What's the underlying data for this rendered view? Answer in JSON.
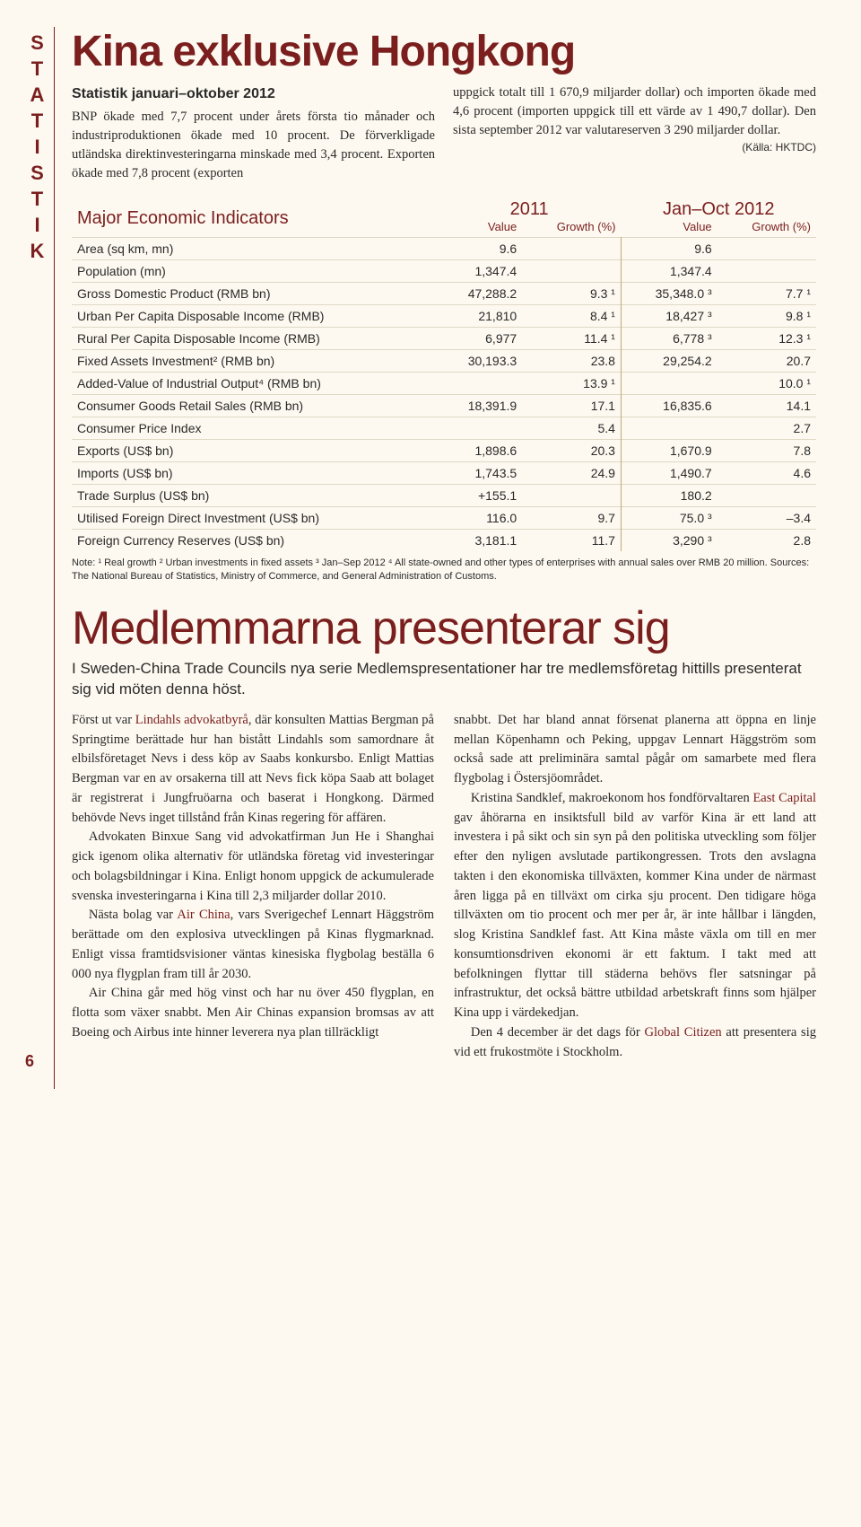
{
  "sideLabel": "STATISTIK",
  "title1": "Kina exklusive Hongkong",
  "subtitle": "Statistik januari–oktober 2012",
  "intro1": "BNP ökade med 7,7 procent under årets första tio månader och industriproduktionen ökade med 10 procent. De förverkligade utländska direktinvesteringarna minskade med 3,4 procent. Exporten ökade med 7,8 procent (exporten",
  "intro1lead": "BNP ökade med",
  "intro2": "uppgick totalt till 1 670,9 miljarder dollar) och importen ökade med 4,6 procent (importen uppgick till ett värde av 1 490,7 dollar). Den sista september 2012 var valutareserven 3 290 miljarder dollar.",
  "source": "(Källa: HKTDC)",
  "tableTitle": "Major Economic Indicators",
  "yearA": "2011",
  "yearB": "Jan–Oct 2012",
  "colValue": "Value",
  "colGrowth": "Growth (%)",
  "rows": [
    {
      "label": "Area (sq km, mn)",
      "v1": "9.6",
      "g1": "",
      "v2": "9.6",
      "g2": ""
    },
    {
      "label": "Population (mn)",
      "v1": "1,347.4",
      "g1": "",
      "v2": "1,347.4",
      "g2": ""
    },
    {
      "label": "Gross Domestic Product (RMB bn)",
      "v1": "47,288.2",
      "g1": "9.3 ¹",
      "v2": "35,348.0 ³",
      "g2": "7.7 ¹"
    },
    {
      "label": "Urban Per Capita Disposable Income (RMB)",
      "v1": "21,810",
      "g1": "8.4 ¹",
      "v2": "18,427 ³",
      "g2": "9.8 ¹"
    },
    {
      "label": "Rural Per Capita Disposable Income (RMB)",
      "v1": "6,977",
      "g1": "11.4 ¹",
      "v2": "6,778 ³",
      "g2": "12.3 ¹"
    },
    {
      "label": "Fixed Assets Investment² (RMB bn)",
      "v1": "30,193.3",
      "g1": "23.8",
      "v2": "29,254.2",
      "g2": "20.7"
    },
    {
      "label": "Added-Value of Industrial Output⁴ (RMB bn)",
      "v1": "",
      "g1": "13.9 ¹",
      "v2": "",
      "g2": "10.0 ¹"
    },
    {
      "label": "Consumer Goods Retail Sales (RMB bn)",
      "v1": "18,391.9",
      "g1": "17.1",
      "v2": "16,835.6",
      "g2": "14.1"
    },
    {
      "label": "Consumer Price Index",
      "v1": "",
      "g1": "5.4",
      "v2": "",
      "g2": "2.7"
    },
    {
      "label": "Exports (US$ bn)",
      "v1": "1,898.6",
      "g1": "20.3",
      "v2": "1,670.9",
      "g2": "7.8"
    },
    {
      "label": "Imports (US$ bn)",
      "v1": "1,743.5",
      "g1": "24.9",
      "v2": "1,490.7",
      "g2": "4.6"
    },
    {
      "label": "Trade Surplus (US$ bn)",
      "v1": "+155.1",
      "g1": "",
      "v2": "180.2",
      "g2": ""
    },
    {
      "label": "Utilised Foreign Direct Investment (US$ bn)",
      "v1": "116.0",
      "g1": "9.7",
      "v2": "75.0 ³",
      "g2": "–3.4"
    },
    {
      "label": "Foreign Currency Reserves (US$ bn)",
      "v1": "3,181.1",
      "g1": "11.7",
      "v2": "3,290 ³",
      "g2": "2.8"
    }
  ],
  "note": "Note: ¹ Real growth  ² Urban investments in fixed assets  ³ Jan–Sep 2012  ⁴ All state-owned and other types of enterprises with annual sales over RMB 20 million. Sources: The National Bureau of Statistics, Ministry of Commerce, and General Administration of Customs.",
  "title2": "Medlemmarna presenterar sig",
  "lead": "I Sweden-China Trade Councils nya serie Medlemspresentationer har tre medlemsföretag hittills presenterat sig vid möten denna höst.",
  "col1": {
    "p1a": "Först ut var ",
    "p1hl": "Lindahls advokatbyrå",
    "p1b": ", där konsulten Mattias Bergman på Springtime berättade hur han bistått Lindahls som samordnare åt elbilsföretaget Nevs i dess köp av Saabs konkursbo. Enligt Mattias Bergman var en av orsakerna till att Nevs fick köpa Saab att bolaget är registrerat i Jungfruöarna och baserat i Hongkong. Därmed behövde Nevs inget tillstånd från Kinas regering för affären.",
    "p2": "Advokaten Binxue Sang vid advokatfirman Jun He i Shanghai gick igenom olika alternativ för utländska företag vid investeringar och bolagsbildningar i Kina. Enligt honom uppgick de ackumulerade svenska investeringarna i Kina till 2,3 miljarder dollar 2010.",
    "p3a": "Nästa bolag var ",
    "p3hl": "Air China",
    "p3b": ", vars Sverigechef Lennart Häggström berättade om den explosiva utvecklingen på Kinas flygmarknad. Enligt vissa framtidsvisioner väntas kinesiska flygbolag beställa 6 000 nya flygplan fram till år 2030.",
    "p4": "Air China går med hög vinst och har nu över 450 flygplan, en flotta som växer snabbt. Men Air Chinas expansion bromsas av att Boeing och Airbus inte hinner leverera nya plan tillräckligt"
  },
  "col2": {
    "p1": "snabbt. Det har bland annat försenat planerna att öppna en linje mellan Köpenhamn och Peking, uppgav Lennart Häggström som också sade att preliminära samtal pågår om samarbete med flera flygbolag i Östersjöområdet.",
    "p2a": "Kristina Sandklef, makroekonom hos fondförvaltaren ",
    "p2hl": "East Capital",
    "p2b": " gav åhörarna en insiktsfull bild av varför Kina är ett land att investera i på sikt och sin syn på den politiska utveckling som följer efter den nyligen avslutade partikongressen. Trots den avslagna takten i den ekonomiska tillväxten, kommer Kina under de närmast åren ligga på en tillväxt om cirka sju procent. Den tidigare höga tillväxten om tio procent och mer per år, är inte hållbar i längden, slog Kristina Sandklef fast. Att Kina måste växla om till en mer konsumtionsdriven ekonomi är ett faktum. I takt med att befolkningen flyttar till städerna behövs fler satsningar på infrastruktur, det också bättre utbildad arbetskraft finns som hjälper Kina upp i värdekedjan.",
    "p3a": "Den 4 december är det dags för ",
    "p3hl": "Global Citizen",
    "p3b": " att presentera sig vid ett frukostmöte i Stockholm."
  },
  "pageNum": "6"
}
